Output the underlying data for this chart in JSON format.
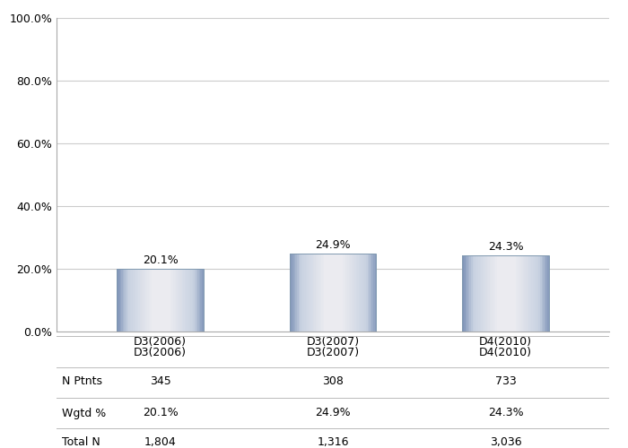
{
  "categories": [
    "D3(2006)",
    "D3(2007)",
    "D4(2010)"
  ],
  "values": [
    20.1,
    24.9,
    24.3
  ],
  "labels": [
    "20.1%",
    "24.9%",
    "24.3%"
  ],
  "n_ptnts": [
    "345",
    "308",
    "733"
  ],
  "wgtd_pct": [
    "20.1%",
    "24.9%",
    "24.3%"
  ],
  "total_n": [
    "1,804",
    "1,316",
    "3,036"
  ],
  "ylim": [
    0,
    100
  ],
  "yticks": [
    0,
    20,
    40,
    60,
    80,
    100
  ],
  "ytick_labels": [
    "0.0%",
    "20.0%",
    "40.0%",
    "60.0%",
    "80.0%",
    "100.0%"
  ],
  "bar_width": 0.5,
  "table_rows": [
    "N Ptnts",
    "Wgtd %",
    "Total N"
  ],
  "background_color": "#ffffff",
  "grid_color": "#cccccc",
  "font_size": 9,
  "label_font_size": 9,
  "table_font_size": 9
}
